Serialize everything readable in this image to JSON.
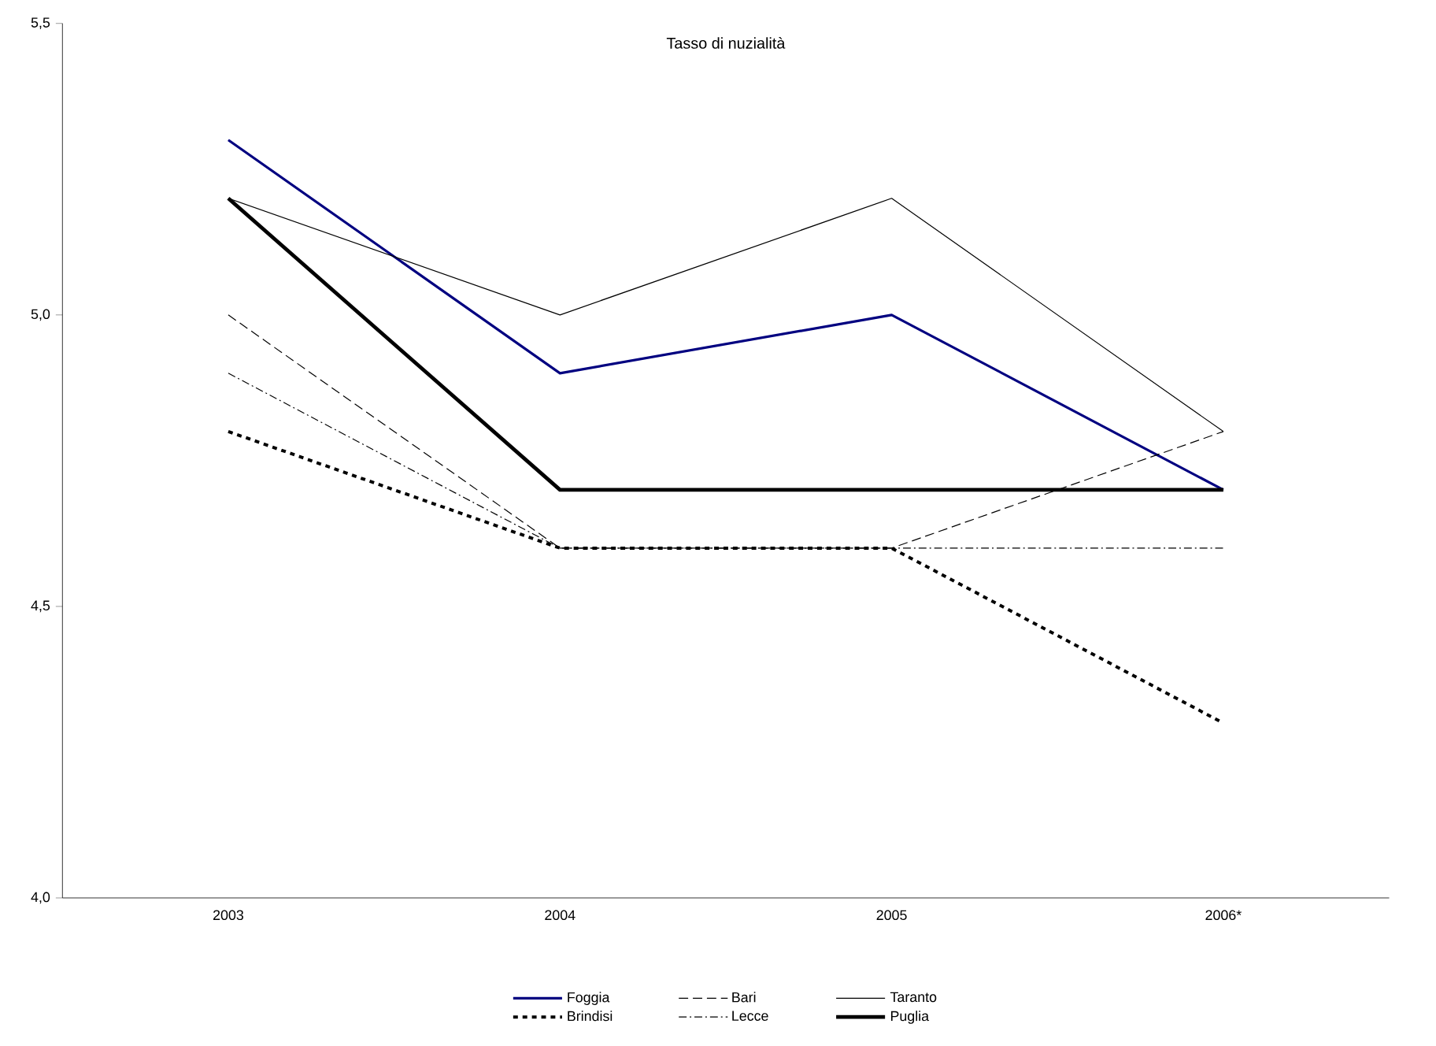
{
  "chart_data": {
    "type": "line",
    "title": "Tasso di nuzialità",
    "categories": [
      "2003",
      "2004",
      "2005",
      "2006*"
    ],
    "series": [
      {
        "name": "Foggia",
        "color": "#000080",
        "values": [
          5.3,
          4.9,
          5.0,
          4.7
        ],
        "line_style": "solid"
      },
      {
        "name": "Bari",
        "color": "#000000",
        "values": [
          5.0,
          4.6,
          4.6,
          4.8
        ],
        "line_style": "dashed"
      },
      {
        "name": "Taranto",
        "color": "#000000",
        "values": [
          5.2,
          5.0,
          5.2,
          4.8
        ],
        "line_style": "solid"
      },
      {
        "name": "Brindisi",
        "color": "#000000",
        "values": [
          4.8,
          4.6,
          4.6,
          4.3
        ],
        "line_style": "dotted"
      },
      {
        "name": "Lecce",
        "color": "#000000",
        "values": [
          4.9,
          4.6,
          4.6,
          4.6
        ],
        "line_style": "dashdot"
      },
      {
        "name": "Puglia",
        "color": "#000000",
        "values": [
          5.2,
          4.7,
          4.7,
          4.7
        ],
        "line_style": "solid"
      }
    ],
    "ylim": [
      4.0,
      5.5
    ],
    "yticks": [
      {
        "value": 4.0,
        "label": "4,0"
      },
      {
        "value": 4.5,
        "label": "4,5"
      },
      {
        "value": 5.0,
        "label": "5,0"
      },
      {
        "value": 5.5,
        "label": "5,5"
      }
    ],
    "grid": false,
    "legend": "bottom",
    "marker": "none"
  }
}
